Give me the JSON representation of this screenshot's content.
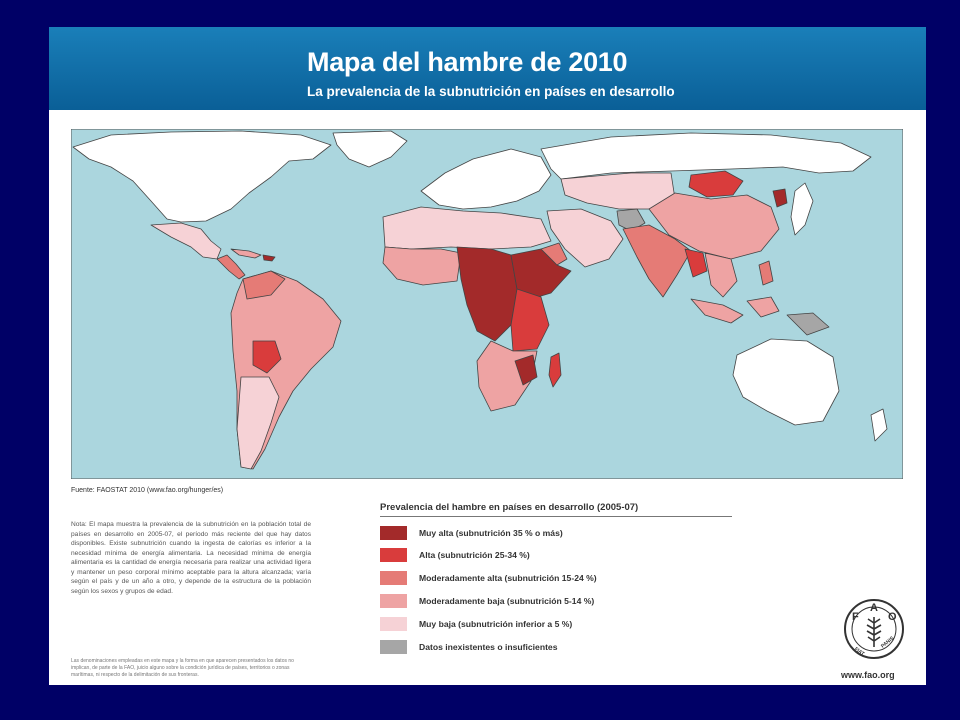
{
  "header": {
    "title": "Mapa del hambre de 2010",
    "subtitle": "La prevalencia de la subnutrición en países en desarrollo"
  },
  "source": "Fuente: FAOSTAT 2010 (www.fao.org/hunger/es)",
  "note": "Nota: El mapa muestra la prevalencia de la subnutrición en la población total de países en desarrollo en 2005-07, el período más reciente del que hay datos disponibles. Existe subnutrición cuando la ingesta de calorías es inferior a la necesidad mínima de energía alimentaria. La necesidad mínima de energía alimentaria es la cantidad de energía necesaria para realizar una actividad ligera y mantener un peso corporal mínimo aceptable para la altura alcanzada; varía según el país y de un año a otro, y depende de la estructura de la población según los sexos y grupos de edad.",
  "disclaimer": "Las denominaciones empleadas en este mapa y la forma en que aparecen presentados los datos no implican, de parte de la FAO, juicio alguno sobre la condición jurídica de países, territorios o zonas marítimas, ni respecto de la delimitación de sus fronteras.",
  "legend": {
    "title": "Prevalencia del hambre en países en desarrollo (2005-07)",
    "items": [
      {
        "label": "Muy alta (subnutrición 35 % o más)",
        "color": "#a32a2a"
      },
      {
        "label": "Alta (subnutrición 25-34 %)",
        "color": "#d93c3c"
      },
      {
        "label": "Moderadamente alta (subnutrición 15-24 %)",
        "color": "#e57b76"
      },
      {
        "label": "Moderadamente baja (subnutrición 5-14 %)",
        "color": "#eea3a3"
      },
      {
        "label": "Muy baja (subnutrición inferior a 5 %)",
        "color": "#f6d2d6"
      },
      {
        "label": "Datos inexistentes o insuficientes",
        "color": "#a6a6a6"
      }
    ]
  },
  "colors": {
    "ocean": "#abd6de",
    "no_data_developed": "#ffffff",
    "background": "#000066",
    "banner": "#0a6aa5"
  },
  "logo": {
    "letters": "FAO",
    "motto": "FIAT PANIS",
    "url": "www.fao.org"
  }
}
